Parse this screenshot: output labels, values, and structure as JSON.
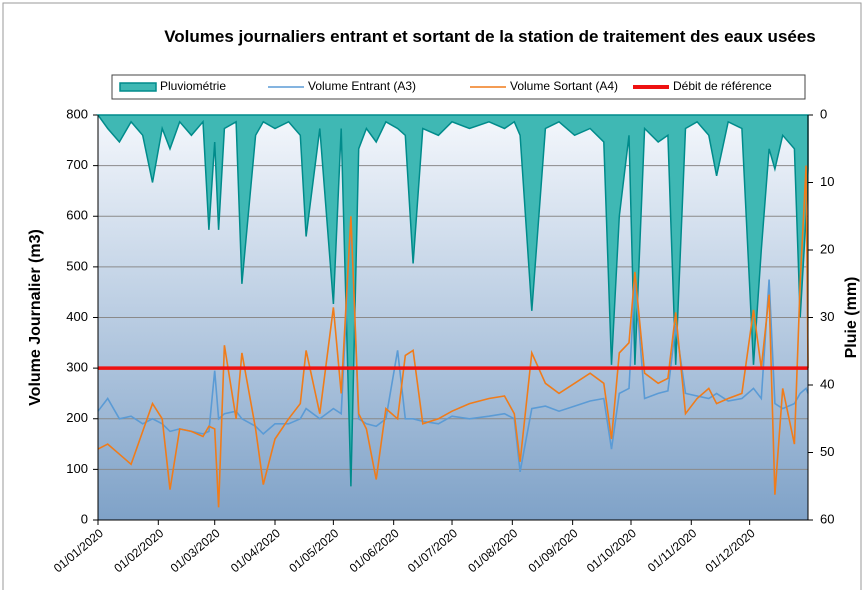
{
  "chart_data": {
    "type": "line",
    "title": "Volumes journaliers entrant et sortant de la station de traitement des eaux usées",
    "y_label": "Volume Journalier (m3)",
    "y2_label": "Pluie (mm)",
    "xlim": [
      "01/01/2020",
      "31/12/2020"
    ],
    "xticks": [
      "01/01/2020",
      "01/02/2020",
      "01/03/2020",
      "01/04/2020",
      "01/05/2020",
      "01/06/2020",
      "01/07/2020",
      "01/08/2020",
      "01/09/2020",
      "01/10/2020",
      "01/11/2020",
      "01/12/2020"
    ],
    "ylim": [
      0,
      800
    ],
    "yticks": [
      0,
      100,
      200,
      300,
      400,
      500,
      600,
      700,
      800
    ],
    "y2lim": [
      60,
      0
    ],
    "y2ticks": [
      0,
      10,
      20,
      30,
      40,
      50,
      60
    ],
    "grid": true,
    "legend": "top",
    "x": [
      "01/01/2020",
      "06/01/2020",
      "12/01/2020",
      "18/01/2020",
      "24/01/2020",
      "29/01/2020",
      "03/02/2020",
      "07/02/2020",
      "12/02/2020",
      "18/02/2020",
      "24/02/2020",
      "27/02/2020",
      "01/03/2020",
      "03/03/2020",
      "06/03/2020",
      "12/03/2020",
      "15/03/2020",
      "22/03/2020",
      "26/03/2020",
      "01/04/2020",
      "08/04/2020",
      "14/04/2020",
      "17/04/2020",
      "24/04/2020",
      "01/05/2020",
      "05/05/2020",
      "10/05/2020",
      "14/05/2020",
      "18/05/2020",
      "23/05/2020",
      "28/05/2020",
      "03/06/2020",
      "07/06/2020",
      "11/06/2020",
      "16/06/2020",
      "24/06/2020",
      "01/07/2020",
      "10/07/2020",
      "20/07/2020",
      "28/07/2020",
      "02/08/2020",
      "05/08/2020",
      "11/08/2020",
      "18/08/2020",
      "25/08/2020",
      "02/09/2020",
      "10/09/2020",
      "17/09/2020",
      "21/09/2020",
      "25/09/2020",
      "30/09/2020",
      "03/10/2020",
      "08/10/2020",
      "15/10/2020",
      "20/10/2020",
      "24/10/2020",
      "29/10/2020",
      "04/11/2020",
      "10/11/2020",
      "14/11/2020",
      "20/11/2020",
      "27/11/2020",
      "03/12/2020",
      "07/12/2020",
      "11/12/2020",
      "14/12/2020",
      "18/12/2020",
      "24/12/2020",
      "27/12/2020",
      "30/12/2020",
      "31/12/2020"
    ],
    "series": [
      {
        "name": "Pluviométrie",
        "color": "#008b8b",
        "fill": "#3fb8b4",
        "kind": "area",
        "axis": "y2",
        "values": [
          0,
          2,
          4,
          1,
          3,
          10,
          2,
          5,
          1,
          3,
          1,
          17,
          4,
          17,
          2,
          1,
          25,
          3,
          1,
          2,
          1,
          3,
          18,
          2,
          28,
          2,
          55,
          5,
          2,
          4,
          1,
          2,
          3,
          22,
          2,
          3,
          1,
          2,
          1,
          2,
          1,
          3,
          29,
          2,
          1,
          3,
          2,
          4,
          37,
          15,
          3,
          37,
          2,
          4,
          3,
          37,
          2,
          1,
          3,
          9,
          1,
          2,
          37,
          20,
          5,
          8,
          3,
          5,
          30,
          15,
          8
        ]
      },
      {
        "name": "Volume Entrant (A3)",
        "color": "#5b9bd5",
        "kind": "line",
        "values": [
          215,
          240,
          200,
          205,
          190,
          200,
          190,
          175,
          180,
          175,
          170,
          175,
          295,
          200,
          210,
          215,
          200,
          185,
          170,
          190,
          190,
          200,
          220,
          200,
          220,
          210,
          590,
          200,
          190,
          185,
          200,
          335,
          200,
          200,
          195,
          190,
          205,
          200,
          205,
          210,
          200,
          95,
          220,
          225,
          215,
          225,
          235,
          240,
          140,
          250,
          260,
          480,
          240,
          250,
          255,
          385,
          250,
          245,
          240,
          250,
          235,
          240,
          260,
          240,
          475,
          230,
          220,
          230,
          250,
          260,
          250
        ]
      },
      {
        "name": "Volume Sortant (A4)",
        "color": "#f07c1a",
        "kind": "line",
        "values": [
          140,
          150,
          130,
          110,
          175,
          230,
          200,
          60,
          180,
          175,
          165,
          185,
          180,
          25,
          345,
          200,
          330,
          180,
          70,
          160,
          200,
          230,
          335,
          210,
          420,
          250,
          600,
          210,
          180,
          80,
          220,
          200,
          325,
          335,
          190,
          200,
          215,
          230,
          240,
          245,
          210,
          115,
          330,
          270,
          250,
          270,
          290,
          270,
          160,
          330,
          350,
          490,
          290,
          270,
          280,
          410,
          210,
          240,
          260,
          230,
          240,
          250,
          415,
          300,
          445,
          50,
          260,
          150,
          470,
          700,
          300
        ]
      },
      {
        "name": "Débit de référence",
        "color": "#ee1111",
        "kind": "ref",
        "x": [
          "01/01/2020",
          "31/12/2020"
        ],
        "values": [
          300,
          300
        ]
      }
    ]
  }
}
